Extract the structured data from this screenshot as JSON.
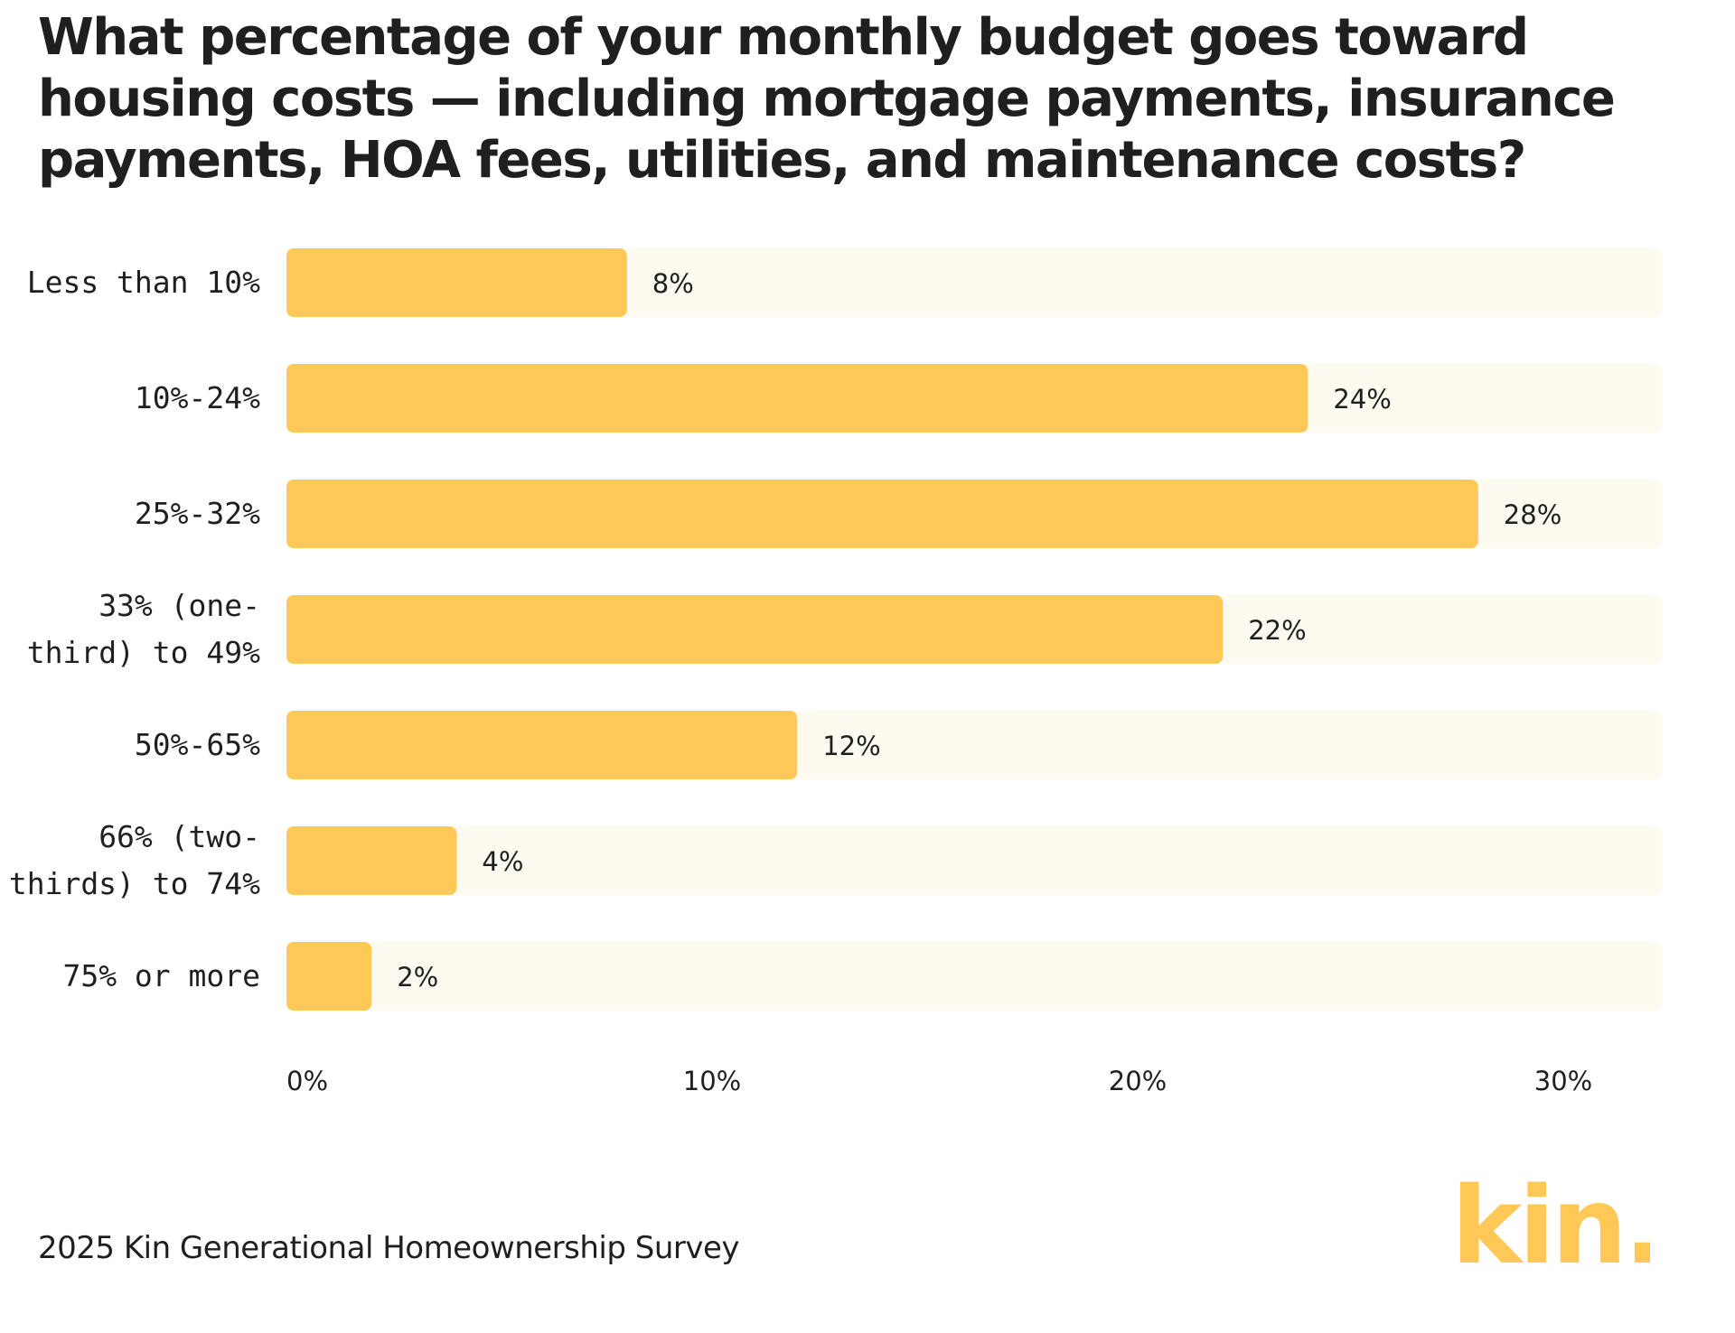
{
  "chart_data": {
    "type": "bar",
    "orientation": "horizontal",
    "title": "What percentage of your monthly budget goes toward housing costs — including mortgage payments, insurance payments, HOA fees, utilities, and maintenance costs?",
    "categories": [
      "Less than 10%",
      "10%-24%",
      "25%-32%",
      "33% (one-third) to 49%",
      "50%-65%",
      "66% (two-thirds) to 74%",
      "75% or more"
    ],
    "category_lines": [
      [
        "Less than 10%"
      ],
      [
        "10%-24%"
      ],
      [
        "25%-32%"
      ],
      [
        "33% (one-",
        "third) to 49%"
      ],
      [
        "50%-65%"
      ],
      [
        "66% (two-",
        "thirds) to 74%"
      ],
      [
        "75% or more"
      ]
    ],
    "values": [
      8,
      24,
      28,
      22,
      12,
      4,
      2
    ],
    "value_labels": [
      "8%",
      "24%",
      "28%",
      "22%",
      "12%",
      "4%",
      "2%"
    ],
    "xlim": [
      0,
      32.5
    ],
    "xticks": [
      0,
      10,
      20,
      30
    ],
    "xtick_labels": [
      "0%",
      "10%",
      "20%",
      "30%"
    ],
    "xlabel": "",
    "ylabel": "",
    "grid": false,
    "bar_color": "#FFC857",
    "track_color": "#FDFAEF"
  },
  "footer": {
    "source": "2025 Kin Generational Homeownership Survey"
  },
  "logo": {
    "text": "kin.",
    "color": "#FFC857"
  }
}
